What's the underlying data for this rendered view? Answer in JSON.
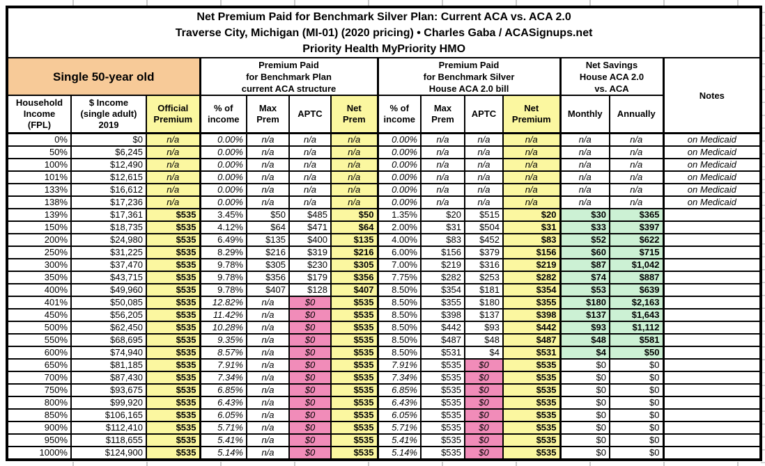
{
  "title": {
    "line1": "Net Premium Paid for Benchmark Silver Plan: Current ACA vs. ACA 2.0",
    "line2": "Traverse City, Michigan (MI-01) (2020 pricing) • Charles Gaba / ACASignups.net",
    "line3": "Priority Health MyPriority HMO"
  },
  "header": {
    "profile": "Single 50-year old",
    "band_current": "Premium Paid\nfor Benchmark Plan\ncurrent ACA structure",
    "band_house": "Premium Paid\nfor Benchmark Silver\nHouse ACA 2.0 bill",
    "band_savings": "Net Savings\nHouse ACA 2.0\nvs. ACA",
    "notes": "Notes",
    "columns": [
      "Household\nIncome\n(FPL)",
      "$ Income\n(single adult)\n2019",
      "Official\nPremium",
      "% of\nincome",
      "Max\nPrem",
      "APTC",
      "Net\nPrem",
      "% of\nincome",
      "Max\nPrem",
      "APTC",
      "Net\nPremium",
      "Monthly",
      "Annually"
    ]
  },
  "colors": {
    "yellow_highlight": "#FBF7A0",
    "orange_header": "#F7CA98",
    "pink_highlight": "#F18CB9",
    "green_savings": "#CCF1D4",
    "border": "#000000"
  },
  "rows": [
    {
      "type": "medicaid",
      "v": [
        "0%",
        "$0",
        "n/a",
        "0.00%",
        "n/a",
        "n/a",
        "n/a",
        "0.00%",
        "n/a",
        "n/a",
        "n/a",
        "n/a",
        "n/a",
        "on Medicaid"
      ]
    },
    {
      "type": "medicaid",
      "v": [
        "50%",
        "$6,245",
        "n/a",
        "0.00%",
        "n/a",
        "n/a",
        "n/a",
        "0.00%",
        "n/a",
        "n/a",
        "n/a",
        "n/a",
        "n/a",
        "on Medicaid"
      ]
    },
    {
      "type": "medicaid",
      "v": [
        "100%",
        "$12,490",
        "n/a",
        "0.00%",
        "n/a",
        "n/a",
        "n/a",
        "0.00%",
        "n/a",
        "n/a",
        "n/a",
        "n/a",
        "n/a",
        "on Medicaid"
      ]
    },
    {
      "type": "medicaid",
      "v": [
        "101%",
        "$12,615",
        "n/a",
        "0.00%",
        "n/a",
        "n/a",
        "n/a",
        "0.00%",
        "n/a",
        "n/a",
        "n/a",
        "n/a",
        "n/a",
        "on Medicaid"
      ]
    },
    {
      "type": "medicaid",
      "v": [
        "133%",
        "$16,612",
        "n/a",
        "0.00%",
        "n/a",
        "n/a",
        "n/a",
        "0.00%",
        "n/a",
        "n/a",
        "n/a",
        "n/a",
        "n/a",
        "on Medicaid"
      ]
    },
    {
      "type": "medicaid",
      "v": [
        "138%",
        "$17,236",
        "n/a",
        "0.00%",
        "n/a",
        "n/a",
        "n/a",
        "0.00%",
        "n/a",
        "n/a",
        "n/a",
        "n/a",
        "n/a",
        "on Medicaid"
      ]
    },
    {
      "type": "subsidized",
      "v": [
        "139%",
        "$17,361",
        "$535",
        "3.45%",
        "$50",
        "$485",
        "$50",
        "1.35%",
        "$20",
        "$515",
        "$20",
        "$30",
        "$365",
        ""
      ]
    },
    {
      "type": "subsidized",
      "v": [
        "150%",
        "$18,735",
        "$535",
        "4.12%",
        "$64",
        "$471",
        "$64",
        "2.00%",
        "$31",
        "$504",
        "$31",
        "$33",
        "$397",
        ""
      ]
    },
    {
      "type": "subsidized",
      "v": [
        "200%",
        "$24,980",
        "$535",
        "6.49%",
        "$135",
        "$400",
        "$135",
        "4.00%",
        "$83",
        "$452",
        "$83",
        "$52",
        "$622",
        ""
      ]
    },
    {
      "type": "subsidized",
      "v": [
        "250%",
        "$31,225",
        "$535",
        "8.29%",
        "$216",
        "$319",
        "$216",
        "6.00%",
        "$156",
        "$379",
        "$156",
        "$60",
        "$715",
        ""
      ]
    },
    {
      "type": "subsidized",
      "v": [
        "300%",
        "$37,470",
        "$535",
        "9.78%",
        "$305",
        "$230",
        "$305",
        "7.00%",
        "$219",
        "$316",
        "$219",
        "$87",
        "$1,042",
        ""
      ]
    },
    {
      "type": "subsidized",
      "v": [
        "350%",
        "$43,715",
        "$535",
        "9.78%",
        "$356",
        "$179",
        "$356",
        "7.75%",
        "$282",
        "$253",
        "$282",
        "$74",
        "$887",
        ""
      ]
    },
    {
      "type": "subsidized",
      "v": [
        "400%",
        "$49,960",
        "$535",
        "9.78%",
        "$407",
        "$128",
        "$407",
        "8.50%",
        "$354",
        "$181",
        "$354",
        "$53",
        "$639",
        ""
      ]
    },
    {
      "type": "cliff",
      "v": [
        "401%",
        "$50,085",
        "$535",
        "12.82%",
        "n/a",
        "$0",
        "$535",
        "8.50%",
        "$355",
        "$180",
        "$355",
        "$180",
        "$2,163",
        ""
      ]
    },
    {
      "type": "cliff",
      "v": [
        "450%",
        "$56,205",
        "$535",
        "11.42%",
        "n/a",
        "$0",
        "$535",
        "8.50%",
        "$398",
        "$137",
        "$398",
        "$137",
        "$1,643",
        ""
      ]
    },
    {
      "type": "cliff",
      "v": [
        "500%",
        "$62,450",
        "$535",
        "10.28%",
        "n/a",
        "$0",
        "$535",
        "8.50%",
        "$442",
        "$93",
        "$442",
        "$93",
        "$1,112",
        ""
      ]
    },
    {
      "type": "cliff",
      "v": [
        "550%",
        "$68,695",
        "$535",
        "9.35%",
        "n/a",
        "$0",
        "$535",
        "8.50%",
        "$487",
        "$48",
        "$487",
        "$48",
        "$581",
        ""
      ]
    },
    {
      "type": "cliff",
      "v": [
        "600%",
        "$74,940",
        "$535",
        "8.57%",
        "n/a",
        "$0",
        "$535",
        "8.50%",
        "$531",
        "$4",
        "$531",
        "$4",
        "$50",
        ""
      ]
    },
    {
      "type": "nosub",
      "v": [
        "650%",
        "$81,185",
        "$535",
        "7.91%",
        "n/a",
        "$0",
        "$535",
        "7.91%",
        "$535",
        "$0",
        "$535",
        "$0",
        "$0",
        ""
      ]
    },
    {
      "type": "nosub",
      "v": [
        "700%",
        "$87,430",
        "$535",
        "7.34%",
        "n/a",
        "$0",
        "$535",
        "7.34%",
        "$535",
        "$0",
        "$535",
        "$0",
        "$0",
        ""
      ]
    },
    {
      "type": "nosub",
      "v": [
        "750%",
        "$93,675",
        "$535",
        "6.85%",
        "n/a",
        "$0",
        "$535",
        "6.85%",
        "$535",
        "$0",
        "$535",
        "$0",
        "$0",
        ""
      ]
    },
    {
      "type": "nosub",
      "v": [
        "800%",
        "$99,920",
        "$535",
        "6.43%",
        "n/a",
        "$0",
        "$535",
        "6.43%",
        "$535",
        "$0",
        "$535",
        "$0",
        "$0",
        ""
      ]
    },
    {
      "type": "nosub",
      "v": [
        "850%",
        "$106,165",
        "$535",
        "6.05%",
        "n/a",
        "$0",
        "$535",
        "6.05%",
        "$535",
        "$0",
        "$535",
        "$0",
        "$0",
        ""
      ]
    },
    {
      "type": "nosub",
      "v": [
        "900%",
        "$112,410",
        "$535",
        "5.71%",
        "n/a",
        "$0",
        "$535",
        "5.71%",
        "$535",
        "$0",
        "$535",
        "$0",
        "$0",
        ""
      ]
    },
    {
      "type": "nosub",
      "v": [
        "950%",
        "$118,655",
        "$535",
        "5.41%",
        "n/a",
        "$0",
        "$535",
        "5.41%",
        "$535",
        "$0",
        "$535",
        "$0",
        "$0",
        ""
      ]
    },
    {
      "type": "nosub",
      "v": [
        "1000%",
        "$124,900",
        "$535",
        "5.14%",
        "n/a",
        "$0",
        "$535",
        "5.14%",
        "$535",
        "$0",
        "$535",
        "$0",
        "$0",
        ""
      ]
    }
  ]
}
